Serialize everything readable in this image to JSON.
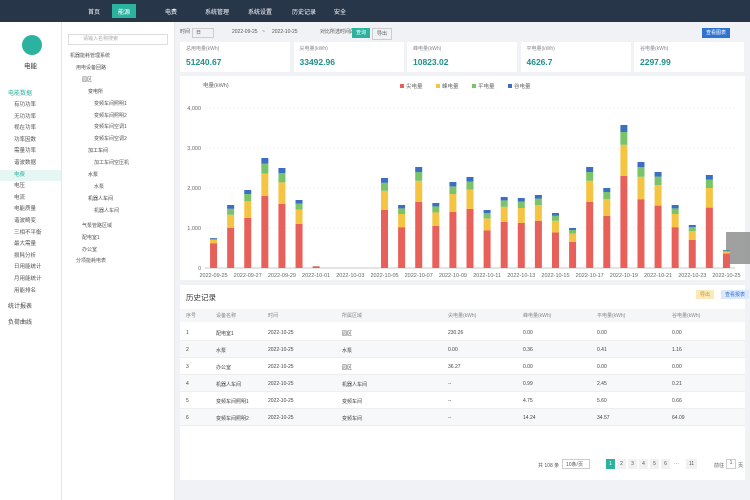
{
  "nav": {
    "items": [
      "首页",
      "能源",
      "电费",
      "系统管理",
      "系统设置",
      "历史记录",
      "安全"
    ],
    "active": 1
  },
  "sidebar": {
    "app": "电能",
    "groups": [
      {
        "label": "电能数据",
        "items": [
          "有功功率",
          "无功功率",
          "视在功率",
          "功率因数",
          "需量功率",
          "谐波数据",
          "电费",
          "电压",
          "电流",
          "电能质量",
          "谐波畸变",
          "三相不平衡",
          "最大需量",
          "损耗分析",
          "日用能统计",
          "月用能统计",
          "用能排名"
        ],
        "active": 6
      },
      {
        "label": "统计报表"
      },
      {
        "label": "负荷曲线"
      }
    ]
  },
  "tree": {
    "search": "请输入名称搜索",
    "nodes": [
      {
        "label": "机器能耗管理系统",
        "level": 0
      },
      {
        "label": "用电设备回路",
        "level": 1
      },
      {
        "label": "园区",
        "level": 2
      },
      {
        "label": "变电所",
        "level": 3
      },
      {
        "label": "变频车间照明1",
        "level": 4
      },
      {
        "label": "变频车间照明2",
        "level": 4
      },
      {
        "label": "变频车间空调1",
        "level": 4
      },
      {
        "label": "变频车间空调2",
        "level": 4
      },
      {
        "label": "加工车间",
        "level": 3
      },
      {
        "label": "加工车间空压机",
        "level": 4
      },
      {
        "label": "水泵",
        "level": 3
      },
      {
        "label": "水泵",
        "level": 4
      },
      {
        "label": "机器人车间",
        "level": 3
      },
      {
        "label": "机器人车间",
        "level": 4
      },
      {
        "label": "气泵管路区域",
        "level": 2
      },
      {
        "label": "配电室1",
        "level": 2
      },
      {
        "label": "办公室",
        "level": 2
      },
      {
        "label": "分项能耗电表",
        "level": 1
      }
    ]
  },
  "toolbar": {
    "label": "时间",
    "unit": "日",
    "start": "2022-09-25",
    "sep": "~",
    "end": "2022-10-25",
    "checkbox": "对比所选时间段",
    "query": "查询",
    "export": "导出",
    "view": "查看图表"
  },
  "stats": [
    {
      "label": "总用电量(kWh)",
      "value": "51240.67"
    },
    {
      "label": "尖电量(kWh)",
      "value": "33492.96"
    },
    {
      "label": "峰电量(kWh)",
      "value": "10823.02"
    },
    {
      "label": "平电量(kWh)",
      "value": "4626.7"
    },
    {
      "label": "谷电量(kWh)",
      "value": "2297.99"
    }
  ],
  "chart_data": {
    "type": "stacked_bar",
    "y_label": "电量(kWh)",
    "ylim": [
      0,
      4000
    ],
    "yticks": [
      0,
      {
        "value": 1000,
        "label": "1,000"
      },
      {
        "value": 2000,
        "label": "2,000"
      },
      {
        "value": 3000,
        "label": "3,000"
      },
      {
        "value": 4000,
        "label": "4,000"
      }
    ],
    "grid": true,
    "categories": [
      "2022-09-25",
      null,
      "2022-09-27",
      null,
      "2022-09-29",
      null,
      "2022-10-01",
      null,
      "2022-10-03",
      null,
      "2022-10-05",
      null,
      "2022-10-07",
      null,
      "2022-10-09",
      null,
      "2022-10-11",
      null,
      "2022-10-13",
      null,
      "2022-10-15",
      null,
      "2022-10-17",
      null,
      "2022-10-19",
      null,
      "2022-10-21",
      null,
      "2022-10-23",
      null,
      "2022-10-25"
    ],
    "series": [
      {
        "name": "尖电量",
        "color": "#e8605a",
        "values": [
          620,
          1000,
          1250,
          1800,
          1600,
          1100,
          40,
          0,
          0,
          0,
          1450,
          1020,
          1650,
          1050,
          1400,
          1480,
          940,
          1150,
          1130,
          1180,
          890,
          650,
          1650,
          1300,
          2300,
          1720,
          1560,
          1020,
          700,
          1510,
          360
        ]
      },
      {
        "name": "峰电量",
        "color": "#f5c443",
        "values": [
          80,
          330,
          420,
          560,
          540,
          360,
          5,
          0,
          0,
          0,
          480,
          330,
          530,
          340,
          450,
          480,
          300,
          380,
          370,
          390,
          290,
          210,
          530,
          420,
          780,
          560,
          510,
          330,
          225,
          490,
          50
        ]
      },
      {
        "name": "平电量",
        "color": "#7ac36a",
        "values": [
          30,
          150,
          180,
          250,
          230,
          150,
          3,
          0,
          0,
          0,
          200,
          140,
          220,
          150,
          190,
          200,
          135,
          160,
          160,
          165,
          125,
          90,
          220,
          180,
          320,
          240,
          215,
          140,
          95,
          210,
          25
        ]
      },
      {
        "name": "谷电量",
        "color": "#3b6fc4",
        "values": [
          20,
          95,
          100,
          140,
          130,
          90,
          2,
          0,
          0,
          0,
          120,
          85,
          125,
          85,
          110,
          115,
          75,
          85,
          90,
          90,
          70,
          50,
          125,
          100,
          175,
          130,
          115,
          85,
          55,
          115,
          15
        ]
      }
    ]
  },
  "table": {
    "title": "历史记录",
    "buttons": [
      "导出",
      "查看报表"
    ],
    "columns": [
      "序号",
      "设备名称",
      "时间",
      "所属区域",
      "尖电量(kWh)",
      "峰电量(kWh)",
      "平电量(kWh)",
      "谷电量(kWh)"
    ],
    "rows": [
      [
        "1",
        "配电室1",
        "2022-10-25",
        "园区",
        "230.26",
        "0.00",
        "0.00",
        "0.00"
      ],
      [
        "2",
        "水泵",
        "2022-10-25",
        "水泵",
        "0.00",
        "0.36",
        "0.41",
        "1.16"
      ],
      [
        "3",
        "办公室",
        "2022-10-25",
        "园区",
        "36.27",
        "0.00",
        "0.00",
        "0.00"
      ],
      [
        "4",
        "机器人车间",
        "2022-10-25",
        "机器人车间",
        "--",
        "0.99",
        "2.45",
        "0.21"
      ],
      [
        "5",
        "变频车间照明1",
        "2022-10-25",
        "变频车间",
        "--",
        "4.75",
        "5.60",
        "0.66"
      ],
      [
        "6",
        "变频车间照明2",
        "2022-10-25",
        "变频车间",
        "--",
        "14.24",
        "34.57",
        "64.09"
      ]
    ]
  },
  "pagination": {
    "total": "共 108 条",
    "size": "10条/页",
    "pages": [
      1,
      2,
      3,
      4,
      5,
      6
    ],
    "ellipsis": "···",
    "last": 11,
    "goto": "前往",
    "goto_value": 1,
    "goto_unit": "页"
  }
}
